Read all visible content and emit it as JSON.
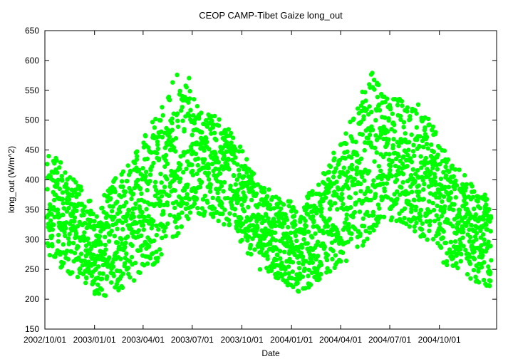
{
  "chart_data": {
    "type": "scatter",
    "title": "CEOP CAMP-Tibet Gaize  long_out",
    "xlabel": "Date",
    "ylabel": "long_out (W/m^2)",
    "ylim": [
      150,
      650
    ],
    "xlim": [
      "2002-10-01",
      "2005-01-15"
    ],
    "yticks": [
      150,
      200,
      250,
      300,
      350,
      400,
      450,
      500,
      550,
      600,
      650
    ],
    "xticks": [
      {
        "label": "2002/10/01",
        "date": "2002-10-01"
      },
      {
        "label": "2003/01/01",
        "date": "2003-01-01"
      },
      {
        "label": "2003/04/01",
        "date": "2003-04-01"
      },
      {
        "label": "2003/07/01",
        "date": "2003-07-01"
      },
      {
        "label": "2003/10/01",
        "date": "2003-10-01"
      },
      {
        "label": "2004/01/01",
        "date": "2004-01-01"
      },
      {
        "label": "2004/04/01",
        "date": "2004-04-01"
      },
      {
        "label": "2004/07/01",
        "date": "2004-07-01"
      },
      {
        "label": "2004/10/01",
        "date": "2004-10-01"
      }
    ],
    "grid": false,
    "marker_color": "#00ff00",
    "envelope": [
      {
        "date": "2002-10-05",
        "min": 270,
        "max": 455
      },
      {
        "date": "2002-10-20",
        "min": 255,
        "max": 445
      },
      {
        "date": "2002-11-10",
        "min": 245,
        "max": 420
      },
      {
        "date": "2002-12-01",
        "min": 235,
        "max": 395
      },
      {
        "date": "2002-12-20",
        "min": 225,
        "max": 375
      },
      {
        "date": "2003-01-05",
        "min": 200,
        "max": 345
      },
      {
        "date": "2003-01-20",
        "min": 205,
        "max": 380
      },
      {
        "date": "2003-02-05",
        "min": 210,
        "max": 400
      },
      {
        "date": "2003-03-01",
        "min": 220,
        "max": 420
      },
      {
        "date": "2003-04-01",
        "min": 245,
        "max": 470
      },
      {
        "date": "2003-05-01",
        "min": 265,
        "max": 520
      },
      {
        "date": "2003-06-01",
        "min": 300,
        "max": 575
      },
      {
        "date": "2003-06-20",
        "min": 330,
        "max": 585
      },
      {
        "date": "2003-07-15",
        "min": 335,
        "max": 515
      },
      {
        "date": "2003-08-15",
        "min": 330,
        "max": 510
      },
      {
        "date": "2003-09-15",
        "min": 315,
        "max": 475
      },
      {
        "date": "2003-10-15",
        "min": 270,
        "max": 430
      },
      {
        "date": "2003-11-15",
        "min": 235,
        "max": 390
      },
      {
        "date": "2003-12-15",
        "min": 215,
        "max": 370
      },
      {
        "date": "2004-01-15",
        "min": 210,
        "max": 360
      },
      {
        "date": "2004-02-15",
        "min": 225,
        "max": 390
      },
      {
        "date": "2004-03-15",
        "min": 245,
        "max": 440
      },
      {
        "date": "2004-04-15",
        "min": 265,
        "max": 490
      },
      {
        "date": "2004-05-15",
        "min": 290,
        "max": 560
      },
      {
        "date": "2004-05-28",
        "min": 300,
        "max": 600
      },
      {
        "date": "2004-06-15",
        "min": 330,
        "max": 545
      },
      {
        "date": "2004-07-15",
        "min": 330,
        "max": 540
      },
      {
        "date": "2004-08-15",
        "min": 315,
        "max": 535
      },
      {
        "date": "2004-09-15",
        "min": 285,
        "max": 500
      },
      {
        "date": "2004-10-15",
        "min": 255,
        "max": 440
      },
      {
        "date": "2004-11-15",
        "min": 240,
        "max": 410
      },
      {
        "date": "2004-12-15",
        "min": 225,
        "max": 385
      },
      {
        "date": "2005-01-05",
        "min": 215,
        "max": 370
      }
    ]
  }
}
